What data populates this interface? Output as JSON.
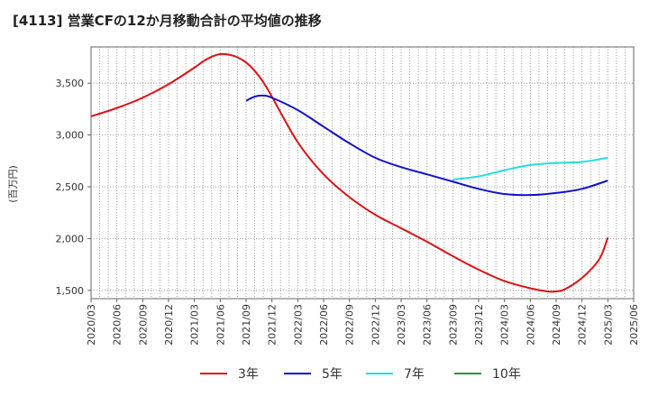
{
  "chart_data": {
    "type": "line",
    "title": "[4113]  営業CFの12か月移動合計の平均値の推移",
    "ylabel": "(百万円)",
    "xlabel": "",
    "ylim": [
      1420,
      3850
    ],
    "yticks": [
      1500,
      2000,
      2500,
      3000,
      3500
    ],
    "ytick_labels": [
      "1,500",
      "2,000",
      "2,500",
      "3,000",
      "3,500"
    ],
    "x_categories": [
      "2020/03",
      "2020/06",
      "2020/09",
      "2020/12",
      "2021/03",
      "2021/06",
      "2021/09",
      "2021/12",
      "2022/03",
      "2022/06",
      "2022/09",
      "2022/12",
      "2023/03",
      "2023/06",
      "2023/09",
      "2023/12",
      "2024/03",
      "2024/06",
      "2024/09",
      "2024/12",
      "2025/03",
      "2025/06"
    ],
    "grid": true,
    "legend_position": "bottom",
    "series": [
      {
        "name": "3年",
        "color": "#dd1111",
        "points": [
          [
            "2020/03",
            3180
          ],
          [
            "2020/06",
            3260
          ],
          [
            "2020/09",
            3360
          ],
          [
            "2020/12",
            3490
          ],
          [
            "2021/03",
            3650
          ],
          [
            "2021/04",
            3710
          ],
          [
            "2021/05",
            3755
          ],
          [
            "2021/06",
            3780
          ],
          [
            "2021/07",
            3775
          ],
          [
            "2021/08",
            3750
          ],
          [
            "2021/09",
            3700
          ],
          [
            "2021/10",
            3620
          ],
          [
            "2021/11",
            3510
          ],
          [
            "2021/12",
            3370
          ],
          [
            "2022/03",
            2930
          ],
          [
            "2022/06",
            2620
          ],
          [
            "2022/09",
            2400
          ],
          [
            "2022/12",
            2230
          ],
          [
            "2023/03",
            2100
          ],
          [
            "2023/06",
            1970
          ],
          [
            "2023/09",
            1830
          ],
          [
            "2023/12",
            1700
          ],
          [
            "2024/03",
            1590
          ],
          [
            "2024/06",
            1520
          ],
          [
            "2024/08",
            1490
          ],
          [
            "2024/09",
            1490
          ],
          [
            "2024/10",
            1510
          ],
          [
            "2024/12",
            1620
          ],
          [
            "2025/02",
            1800
          ],
          [
            "2025/03",
            2010
          ]
        ]
      },
      {
        "name": "5年",
        "color": "#1111cc",
        "points": [
          [
            "2021/09",
            3330
          ],
          [
            "2021/10",
            3370
          ],
          [
            "2021/11",
            3380
          ],
          [
            "2021/12",
            3360
          ],
          [
            "2022/03",
            3240
          ],
          [
            "2022/06",
            3080
          ],
          [
            "2022/09",
            2920
          ],
          [
            "2022/12",
            2780
          ],
          [
            "2023/03",
            2690
          ],
          [
            "2023/06",
            2620
          ],
          [
            "2023/09",
            2550
          ],
          [
            "2023/12",
            2480
          ],
          [
            "2024/03",
            2430
          ],
          [
            "2024/06",
            2420
          ],
          [
            "2024/09",
            2440
          ],
          [
            "2024/12",
            2480
          ],
          [
            "2025/03",
            2560
          ]
        ]
      },
      {
        "name": "7年",
        "color": "#22dddd",
        "points": [
          [
            "2023/09",
            2570
          ],
          [
            "2023/12",
            2600
          ],
          [
            "2024/03",
            2660
          ],
          [
            "2024/06",
            2710
          ],
          [
            "2024/09",
            2730
          ],
          [
            "2024/12",
            2740
          ],
          [
            "2025/03",
            2780
          ]
        ]
      },
      {
        "name": "10年",
        "color": "#229922",
        "points": []
      }
    ]
  }
}
